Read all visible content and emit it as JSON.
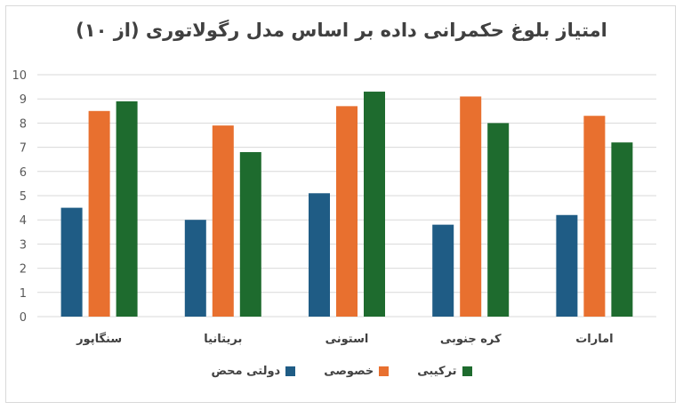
{
  "chart_data": {
    "type": "bar",
    "title": "امتیاز بلوغ حکمرانی داده بر اساس مدل رگولاتوری (از ۱۰)",
    "categories": [
      "سنگاپور",
      "بریتانیا",
      "استونی",
      "کره جنوبی",
      "امارات"
    ],
    "series": [
      {
        "name": "دولتی محض",
        "color": "#1f5c85",
        "values": [
          4.5,
          4.0,
          5.1,
          3.8,
          4.2
        ]
      },
      {
        "name": "خصوصی",
        "color": "#e8702f",
        "values": [
          8.5,
          7.9,
          8.7,
          9.1,
          8.3
        ]
      },
      {
        "name": "ترکیبی",
        "color": "#1e6b2e",
        "values": [
          8.9,
          6.8,
          9.3,
          8.0,
          7.2
        ]
      }
    ],
    "ylim": [
      0,
      10
    ],
    "yticks": [
      0,
      1,
      2,
      3,
      4,
      5,
      6,
      7,
      8,
      9,
      10
    ],
    "grid": true,
    "legend": "bottom"
  }
}
